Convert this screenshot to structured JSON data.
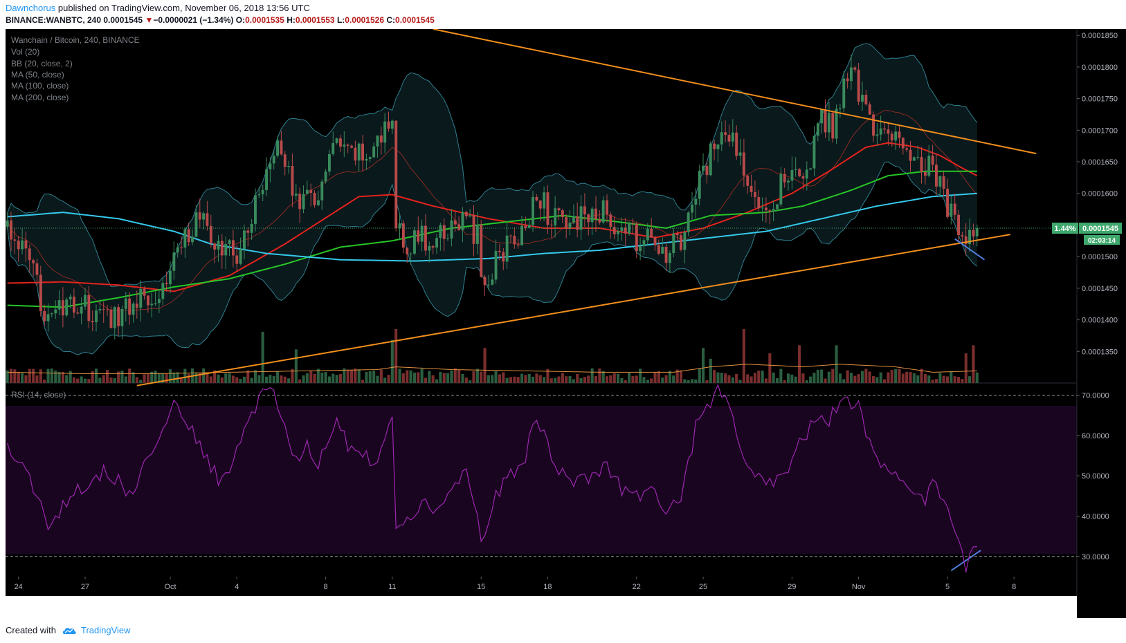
{
  "header": {
    "author": "Dawnchorus",
    "published_text": "published on TradingView.com, November 06, 2018 13:56 UTC",
    "symbol": "BINANCE:WANBTC, 240",
    "last": "0.0001545",
    "change_arrow": "▼",
    "change": "−0.0000021 (−1.34%)",
    "o_label": "O:",
    "o_value": "0.0001535",
    "h_label": "H:",
    "h_value": "0.0001553",
    "l_label": "L:",
    "l_value": "0.0001526",
    "c_label": "C:",
    "c_value": "0.0001545"
  },
  "legend": {
    "title": "Wanchain / Bitcoin, 240, BINANCE",
    "vol": "Vol (20)",
    "bb": "BB (20, close, 2)",
    "ma50": "MA (50, close)",
    "ma100": "MA (100, close)",
    "ma200": "MA (200, close)",
    "rsi": "RSI (14, close)"
  },
  "price_tag": {
    "percent": "1.44%",
    "price": "0.0001545",
    "countdown": "02:03:14"
  },
  "footer": {
    "created_with": "Created with",
    "brand": "TradingView"
  },
  "colors": {
    "background": "#000000",
    "up": "#3a8a5c",
    "down": "#b84a4a",
    "ma50": "#e5231c",
    "ma100": "#27c627",
    "ma200": "#35c9ec",
    "bb": "#2f7f8f",
    "trendline": "#f28e1c",
    "rsi": "#9c27b0",
    "rsi_band": "#1a0520",
    "divergence": "#4f7fe0",
    "vol_ma": "#e09040",
    "tag_bg": "#3ea86d"
  },
  "chart_data": {
    "type": "candlestick",
    "symbol": "WANBTC",
    "timeframe": "240",
    "price_axis": {
      "range": [
        0.00013,
        0.000186
      ],
      "ticks": [
        "0.0001850",
        "0.0001800",
        "0.0001750",
        "0.0001700",
        "0.0001650",
        "0.0001600",
        "0.0001550",
        "0.0001500",
        "0.0001450",
        "0.0001400",
        "0.0001350"
      ]
    },
    "rsi_axis": {
      "range": [
        25,
        73
      ],
      "ticks": [
        "70.0000",
        "60.0000",
        "50.0000",
        "40.0000",
        "30.0000"
      ],
      "bands": [
        30,
        70
      ]
    },
    "x_labels": [
      "24",
      "27",
      "Oct",
      "4",
      "8",
      "11",
      "15",
      "18",
      "22",
      "25",
      "29",
      "Nov",
      "5",
      "8"
    ],
    "x_label_bars": [
      3,
      21,
      44,
      62,
      86,
      104,
      128,
      146,
      170,
      188,
      212,
      230,
      254,
      272
    ],
    "bar_count": 279,
    "last_bar_index": 262,
    "current_price": 0.0001545,
    "close_anchors": [
      [
        0,
        0.000155
      ],
      [
        5,
        0.00015
      ],
      [
        10,
        0.000142
      ],
      [
        14,
        0.000141
      ],
      [
        20,
        0.0001425
      ],
      [
        25,
        0.00014
      ],
      [
        30,
        0.000141
      ],
      [
        36,
        0.000144
      ],
      [
        42,
        0.000145
      ],
      [
        46,
        0.000152
      ],
      [
        52,
        0.000156
      ],
      [
        57,
        0.000151
      ],
      [
        63,
        0.000151
      ],
      [
        68,
        0.00016
      ],
      [
        72,
        0.000168
      ],
      [
        76,
        0.000163
      ],
      [
        80,
        0.000158
      ],
      [
        84,
        0.00016
      ],
      [
        88,
        0.000167
      ],
      [
        92,
        0.000166
      ],
      [
        96,
        0.000166
      ],
      [
        100,
        0.000168
      ],
      [
        104,
        0.000171
      ],
      [
        105,
        0.000156
      ],
      [
        108,
        0.000152
      ],
      [
        112,
        0.000153
      ],
      [
        116,
        0.000152
      ],
      [
        120,
        0.000155
      ],
      [
        124,
        0.000156
      ],
      [
        127,
        0.000153
      ],
      [
        129,
        0.000144
      ],
      [
        132,
        0.00015
      ],
      [
        136,
        0.000152
      ],
      [
        140,
        0.000154
      ],
      [
        143,
        0.000161
      ],
      [
        147,
        0.000156
      ],
      [
        150,
        0.000155
      ],
      [
        154,
        0.000156
      ],
      [
        158,
        0.000156
      ],
      [
        162,
        0.000157
      ],
      [
        166,
        0.000154
      ],
      [
        170,
        0.000153
      ],
      [
        174,
        0.000152
      ],
      [
        178,
        0.000151
      ],
      [
        182,
        0.000152
      ],
      [
        186,
        0.00016
      ],
      [
        190,
        0.000166
      ],
      [
        193,
        0.00017
      ],
      [
        196,
        0.000168
      ],
      [
        200,
        0.000163
      ],
      [
        204,
        0.000158
      ],
      [
        208,
        0.00016
      ],
      [
        212,
        0.000165
      ],
      [
        216,
        0.000162
      ],
      [
        220,
        0.000172
      ],
      [
        223,
        0.00017
      ],
      [
        226,
        0.000178
      ],
      [
        228,
        0.000179
      ],
      [
        230,
        0.000176
      ],
      [
        234,
        0.000171
      ],
      [
        238,
        0.000168
      ],
      [
        242,
        0.000168
      ],
      [
        246,
        0.000166
      ],
      [
        250,
        0.000164
      ],
      [
        254,
        0.000158
      ],
      [
        256,
        0.000155
      ],
      [
        258,
        0.000153
      ],
      [
        260,
        0.000152
      ],
      [
        262,
        0.0001545
      ]
    ],
    "ma50_anchors": [
      [
        0,
        0.0001458
      ],
      [
        15,
        0.000146
      ],
      [
        30,
        0.0001455
      ],
      [
        45,
        0.0001445
      ],
      [
        60,
        0.000147
      ],
      [
        75,
        0.000152
      ],
      [
        95,
        0.0001595
      ],
      [
        104,
        0.0001598
      ],
      [
        115,
        0.000158
      ],
      [
        130,
        0.000156
      ],
      [
        145,
        0.0001545
      ],
      [
        160,
        0.0001545
      ],
      [
        175,
        0.000153
      ],
      [
        188,
        0.0001545
      ],
      [
        200,
        0.000157
      ],
      [
        212,
        0.00016
      ],
      [
        222,
        0.0001635
      ],
      [
        232,
        0.0001673
      ],
      [
        238,
        0.000168
      ],
      [
        246,
        0.0001673
      ],
      [
        252,
        0.000166
      ],
      [
        258,
        0.000164
      ],
      [
        262,
        0.0001628
      ]
    ],
    "ma100_anchors": [
      [
        0,
        0.0001423
      ],
      [
        15,
        0.000142
      ],
      [
        30,
        0.0001435
      ],
      [
        45,
        0.0001452
      ],
      [
        60,
        0.0001465
      ],
      [
        75,
        0.0001488
      ],
      [
        90,
        0.0001515
      ],
      [
        104,
        0.0001525
      ],
      [
        120,
        0.0001545
      ],
      [
        135,
        0.0001555
      ],
      [
        150,
        0.0001565
      ],
      [
        165,
        0.0001555
      ],
      [
        178,
        0.0001545
      ],
      [
        190,
        0.0001565
      ],
      [
        205,
        0.000157
      ],
      [
        215,
        0.000158
      ],
      [
        228,
        0.0001605
      ],
      [
        238,
        0.0001628
      ],
      [
        248,
        0.0001635
      ],
      [
        262,
        0.0001635
      ]
    ],
    "ma200_anchors": [
      [
        0,
        0.0001563
      ],
      [
        15,
        0.000157
      ],
      [
        30,
        0.000156
      ],
      [
        45,
        0.000154
      ],
      [
        55,
        0.000152
      ],
      [
        70,
        0.0001505
      ],
      [
        90,
        0.0001495
      ],
      [
        110,
        0.0001493
      ],
      [
        130,
        0.0001497
      ],
      [
        145,
        0.0001505
      ],
      [
        160,
        0.000151
      ],
      [
        175,
        0.000152
      ],
      [
        190,
        0.000153
      ],
      [
        205,
        0.000154
      ],
      [
        220,
        0.000156
      ],
      [
        235,
        0.000158
      ],
      [
        250,
        0.0001595
      ],
      [
        262,
        0.00016
      ]
    ],
    "trendlines": [
      {
        "name": "upper",
        "from": [
          115,
          0.000186
        ],
        "to": [
          278,
          0.0001663
        ]
      },
      {
        "name": "lower",
        "from": [
          35,
          0.0001296
        ],
        "to": [
          271,
          0.0001535
        ]
      },
      {
        "name": "price-divergence",
        "pane": "price",
        "from": [
          256,
          0.0001528
        ],
        "to": [
          264,
          0.0001495
        ]
      },
      {
        "name": "rsi-divergence",
        "pane": "rsi",
        "from": [
          255,
          26.5
        ],
        "to": [
          263,
          31.5
        ]
      }
    ],
    "rsi_anchors": [
      [
        0,
        57
      ],
      [
        3,
        53
      ],
      [
        6,
        51
      ],
      [
        8,
        44
      ],
      [
        11,
        38
      ],
      [
        14,
        41
      ],
      [
        18,
        47
      ],
      [
        22,
        48
      ],
      [
        26,
        51
      ],
      [
        30,
        49
      ],
      [
        33,
        45
      ],
      [
        36,
        51
      ],
      [
        40,
        56
      ],
      [
        44,
        67
      ],
      [
        46,
        68
      ],
      [
        50,
        61
      ],
      [
        54,
        54
      ],
      [
        58,
        48
      ],
      [
        62,
        57
      ],
      [
        65,
        63
      ],
      [
        70,
        72
      ],
      [
        73,
        68
      ],
      [
        76,
        57
      ],
      [
        78,
        53
      ],
      [
        81,
        58
      ],
      [
        84,
        52
      ],
      [
        86,
        58
      ],
      [
        89,
        63
      ],
      [
        92,
        58
      ],
      [
        96,
        56
      ],
      [
        100,
        52
      ],
      [
        104,
        66
      ],
      [
        105,
        37
      ],
      [
        108,
        38
      ],
      [
        112,
        44
      ],
      [
        116,
        42
      ],
      [
        120,
        46
      ],
      [
        124,
        52
      ],
      [
        128,
        35
      ],
      [
        129,
        34
      ],
      [
        132,
        45
      ],
      [
        136,
        50
      ],
      [
        140,
        55
      ],
      [
        143,
        65
      ],
      [
        147,
        55
      ],
      [
        150,
        50
      ],
      [
        154,
        49
      ],
      [
        158,
        50
      ],
      [
        162,
        53
      ],
      [
        166,
        47
      ],
      [
        170,
        45
      ],
      [
        174,
        47
      ],
      [
        178,
        42
      ],
      [
        182,
        44
      ],
      [
        186,
        62
      ],
      [
        190,
        68
      ],
      [
        192,
        71
      ],
      [
        195,
        67
      ],
      [
        198,
        57
      ],
      [
        202,
        50
      ],
      [
        206,
        48
      ],
      [
        210,
        51
      ],
      [
        214,
        58
      ],
      [
        218,
        63
      ],
      [
        222,
        64
      ],
      [
        226,
        70
      ],
      [
        230,
        67
      ],
      [
        234,
        56
      ],
      [
        238,
        52
      ],
      [
        241,
        49
      ],
      [
        244,
        45
      ],
      [
        248,
        44
      ],
      [
        250,
        48
      ],
      [
        253,
        45
      ],
      [
        256,
        36
      ],
      [
        259,
        28
      ],
      [
        261,
        33
      ],
      [
        263,
        35
      ]
    ],
    "volume_ma_anchors": [
      [
        0,
        8
      ],
      [
        20,
        7
      ],
      [
        40,
        7
      ],
      [
        60,
        8
      ],
      [
        80,
        9
      ],
      [
        100,
        10
      ],
      [
        105,
        12
      ],
      [
        120,
        10
      ],
      [
        140,
        9
      ],
      [
        160,
        8
      ],
      [
        180,
        8
      ],
      [
        190,
        12
      ],
      [
        200,
        14
      ],
      [
        215,
        12
      ],
      [
        225,
        14
      ],
      [
        240,
        12
      ],
      [
        250,
        8
      ],
      [
        262,
        9
      ]
    ],
    "volume_spikes": [
      [
        69,
        38
      ],
      [
        78,
        25
      ],
      [
        104,
        32
      ],
      [
        105,
        40
      ],
      [
        129,
        26
      ],
      [
        188,
        26
      ],
      [
        190,
        18
      ],
      [
        199,
        40
      ],
      [
        206,
        22
      ],
      [
        214,
        28
      ],
      [
        224,
        28
      ],
      [
        259,
        22
      ],
      [
        261,
        28
      ]
    ]
  }
}
